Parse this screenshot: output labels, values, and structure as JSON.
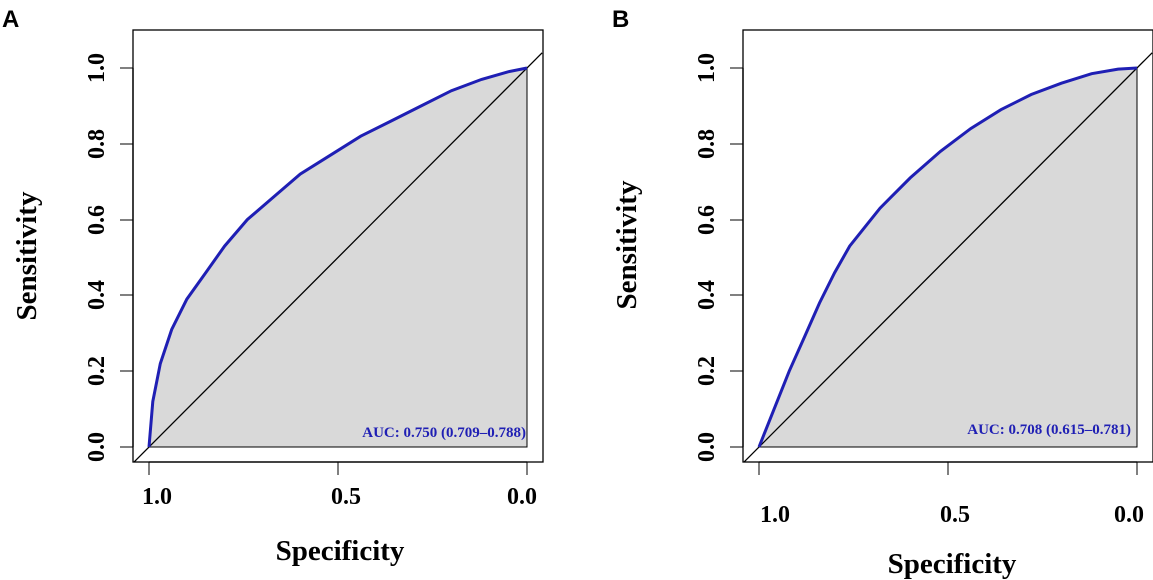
{
  "colors": {
    "curve": "#1f1fb4",
    "fill": "#d9d9d9",
    "diagonal": "#000000",
    "auc_text": "#1f1fb4"
  },
  "chart_data": [
    {
      "type": "line",
      "panel_label": "A",
      "xlabel": "Specificity",
      "ylabel": "Sensitivity",
      "xlim": [
        1.0,
        0.0
      ],
      "ylim": [
        0.0,
        1.0
      ],
      "x_ticks": [
        "1.0",
        "0.5",
        "0.0"
      ],
      "y_ticks": [
        "0.0",
        "0.2",
        "0.4",
        "0.6",
        "0.8",
        "1.0"
      ],
      "auc_text": "AUC: 0.750 (0.709–0.788)",
      "series": [
        {
          "name": "ROC",
          "specificity": [
            1.0,
            0.99,
            0.97,
            0.94,
            0.9,
            0.85,
            0.8,
            0.74,
            0.67,
            0.6,
            0.52,
            0.44,
            0.36,
            0.28,
            0.2,
            0.12,
            0.05,
            0.0
          ],
          "sensitivity": [
            0.0,
            0.12,
            0.22,
            0.31,
            0.39,
            0.46,
            0.53,
            0.6,
            0.66,
            0.72,
            0.77,
            0.82,
            0.86,
            0.9,
            0.94,
            0.97,
            0.99,
            1.0
          ]
        },
        {
          "name": "chance",
          "specificity": [
            1.0,
            0.0
          ],
          "sensitivity": [
            0.0,
            1.0
          ]
        }
      ]
    },
    {
      "type": "line",
      "panel_label": "B",
      "xlabel": "Specificity",
      "ylabel": "Sensitivity",
      "xlim": [
        1.0,
        0.0
      ],
      "ylim": [
        0.0,
        1.0
      ],
      "x_ticks": [
        "1.0",
        "0.5",
        "0.0"
      ],
      "y_ticks": [
        "0.0",
        "0.2",
        "0.4",
        "0.6",
        "0.8",
        "1.0"
      ],
      "auc_text": "AUC: 0.708 (0.615–0.781)",
      "series": [
        {
          "name": "ROC",
          "specificity": [
            1.0,
            0.96,
            0.92,
            0.88,
            0.84,
            0.8,
            0.76,
            0.72,
            0.68,
            0.6,
            0.52,
            0.44,
            0.36,
            0.28,
            0.2,
            0.12,
            0.05,
            0.0
          ],
          "sensitivity": [
            0.0,
            0.1,
            0.2,
            0.29,
            0.38,
            0.46,
            0.53,
            0.58,
            0.63,
            0.71,
            0.78,
            0.84,
            0.89,
            0.93,
            0.96,
            0.985,
            0.997,
            1.0
          ]
        },
        {
          "name": "chance",
          "specificity": [
            1.0,
            0.0
          ],
          "sensitivity": [
            0.0,
            1.0
          ]
        }
      ]
    }
  ]
}
